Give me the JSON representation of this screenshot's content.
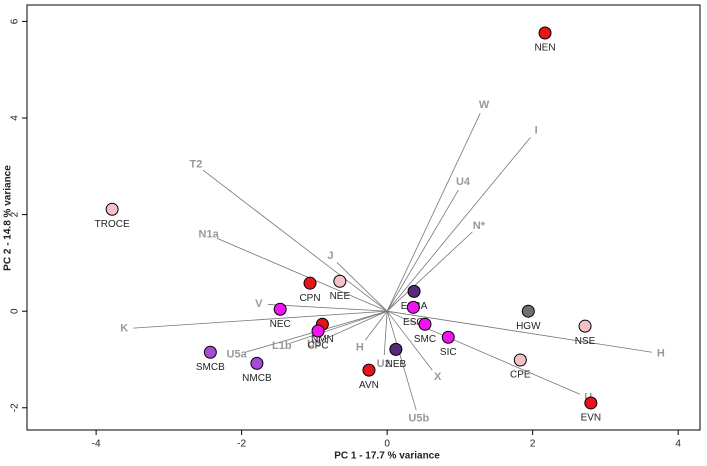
{
  "chart_data": {
    "type": "biplot",
    "xlabel": "PC 1 -  17.7 % variance",
    "ylabel": "PC 2 -  14.8 % variance",
    "xlim": [
      -4.95,
      4.3
    ],
    "ylim": [
      -2.46,
      6.34
    ],
    "xticks": [
      -4,
      -2,
      0,
      2,
      4
    ],
    "yticks": [
      -2,
      0,
      2,
      4,
      6
    ],
    "points": [
      {
        "label": "NEN",
        "x": 2.17,
        "y": 5.76,
        "color": "#e8141b"
      },
      {
        "label": "TROCE",
        "x": -3.78,
        "y": 2.11,
        "color": "#f4c2c6"
      },
      {
        "label": "CPN",
        "x": -1.06,
        "y": 0.58,
        "color": "#e8141b"
      },
      {
        "label": "NEE",
        "x": -0.65,
        "y": 0.62,
        "color": "#f4c2c6"
      },
      {
        "label": "ESBA",
        "x": 0.37,
        "y": 0.41,
        "color": "#5a2a7a"
      },
      {
        "label": "ESC",
        "x": 0.36,
        "y": 0.08,
        "color": "#f014f0"
      },
      {
        "label": "NEC",
        "x": -1.47,
        "y": 0.04,
        "color": "#f014f0"
      },
      {
        "label": "HGW",
        "x": 1.94,
        "y": 0.0,
        "color": "#707070"
      },
      {
        "label": "NSE",
        "x": 2.72,
        "y": -0.31,
        "color": "#f4c2c6"
      },
      {
        "label": "SMC",
        "x": 0.52,
        "y": -0.27,
        "color": "#f014f0"
      },
      {
        "label": "SIC",
        "x": 0.84,
        "y": -0.54,
        "color": "#f014f0"
      },
      {
        "label": "NMN",
        "x": -0.89,
        "y": -0.27,
        "color": "#e8141b"
      },
      {
        "label": "CPC",
        "x": -0.95,
        "y": -0.41,
        "color": "#f014f0"
      },
      {
        "label": "NEB",
        "x": 0.12,
        "y": -0.79,
        "color": "#5a2a7a"
      },
      {
        "label": "SMCB",
        "x": -2.43,
        "y": -0.85,
        "color": "#a64ad8"
      },
      {
        "label": "NMCB",
        "x": -1.79,
        "y": -1.08,
        "color": "#a64ad8"
      },
      {
        "label": "AVN",
        "x": -0.25,
        "y": -1.22,
        "color": "#e8141b"
      },
      {
        "label": "CPE",
        "x": 1.83,
        "y": -1.01,
        "color": "#f4c2c6"
      },
      {
        "label": "EVN",
        "x": 2.8,
        "y": -1.9,
        "color": "#e8141b"
      }
    ],
    "loadings": [
      {
        "name": "W",
        "x": 1.28,
        "y": 4.1
      },
      {
        "name": "I",
        "x": 1.97,
        "y": 3.6
      },
      {
        "name": "U4",
        "x": 0.98,
        "y": 2.51
      },
      {
        "name": "N*",
        "x": 1.17,
        "y": 1.64
      },
      {
        "name": "T2",
        "x": -2.53,
        "y": 2.92
      },
      {
        "name": "N1a",
        "x": -2.34,
        "y": 1.51
      },
      {
        "name": "J",
        "x": -0.69,
        "y": 1.01
      },
      {
        "name": "V",
        "x": -1.64,
        "y": 0.14
      },
      {
        "name": "K",
        "x": -3.49,
        "y": -0.35
      },
      {
        "name": "U5a",
        "x": -1.95,
        "y": -0.85
      },
      {
        "name": "L1b",
        "x": -1.33,
        "y": -0.66
      },
      {
        "name": "U3",
        "x": -0.89,
        "y": -0.6
      },
      {
        "name": "H",
        "x": -0.3,
        "y": -0.6
      },
      {
        "name": "U2",
        "x": -0.04,
        "y": -0.91
      },
      {
        "name": "X",
        "x": 0.62,
        "y": -1.22
      },
      {
        "name": "U5b",
        "x": 0.4,
        "y": -2.05
      },
      {
        "name": "H",
        "x": 3.64,
        "y": -0.85
      },
      {
        "name": "U",
        "x": 2.65,
        "y": -1.72
      }
    ]
  }
}
